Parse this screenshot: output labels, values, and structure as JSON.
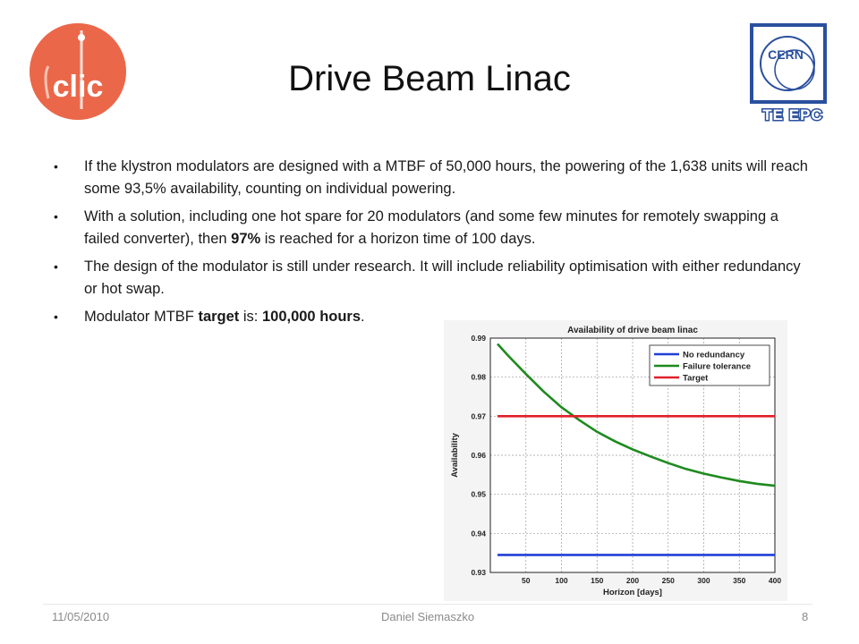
{
  "title": "Drive Beam Linac",
  "logos": {
    "clic": "clic",
    "cern": "CERN",
    "dept": "TE EPC"
  },
  "bullets": [
    {
      "parts": [
        {
          "t": "If the klystron modulators are designed with a MTBF of 50,000 hours, the powering of the 1,638 units will reach some 93,5% availability, counting on individual powering.",
          "b": false
        }
      ]
    },
    {
      "parts": [
        {
          "t": "With a solution, including one hot spare for 20 modulators (and some few minutes for remotely swapping a failed converter), then ",
          "b": false
        },
        {
          "t": "97%",
          "b": true
        },
        {
          "t": " is reached for a horizon time of 100 days.",
          "b": false
        }
      ]
    },
    {
      "parts": [
        {
          "t": "The design of the modulator is still under research. It will include reliability optimisation with either redundancy or hot swap.",
          "b": false
        }
      ]
    },
    {
      "parts": [
        {
          "t": "Modulator MTBF ",
          "b": false
        },
        {
          "t": "target",
          "b": true
        },
        {
          "t": " is: ",
          "b": false
        },
        {
          "t": "100,000 hours",
          "b": true
        },
        {
          "t": ".",
          "b": false
        }
      ]
    }
  ],
  "chart_data": {
    "type": "line",
    "title": "Availability of drive beam linac",
    "xlabel": "Horizon [days]",
    "ylabel": "Availability",
    "xlim": [
      0,
      400
    ],
    "ylim": [
      0.93,
      0.99
    ],
    "xticks": [
      50,
      100,
      150,
      200,
      250,
      300,
      350,
      400
    ],
    "yticks": [
      0.93,
      0.94,
      0.95,
      0.96,
      0.97,
      0.98,
      0.99
    ],
    "grid": true,
    "legend_position": "top-right",
    "series": [
      {
        "name": "No redundancy",
        "color": "#1f3fd6",
        "x": [
          10,
          400
        ],
        "y": [
          0.9345,
          0.9345
        ]
      },
      {
        "name": "Failure tolerance",
        "color": "#1e8a1e",
        "x": [
          10,
          25,
          50,
          75,
          100,
          125,
          150,
          175,
          200,
          225,
          250,
          275,
          300,
          325,
          350,
          375,
          400
        ],
        "y": [
          0.9885,
          0.9855,
          0.9808,
          0.9763,
          0.9723,
          0.969,
          0.966,
          0.9636,
          0.9615,
          0.9597,
          0.958,
          0.9565,
          0.9553,
          0.9543,
          0.9534,
          0.9527,
          0.9522
        ]
      },
      {
        "name": "Target",
        "color": "#e0202a",
        "x": [
          10,
          400
        ],
        "y": [
          0.97,
          0.97
        ]
      }
    ]
  },
  "footer": {
    "date": "11/05/2010",
    "author": "Daniel Siemaszko",
    "page": "8"
  }
}
